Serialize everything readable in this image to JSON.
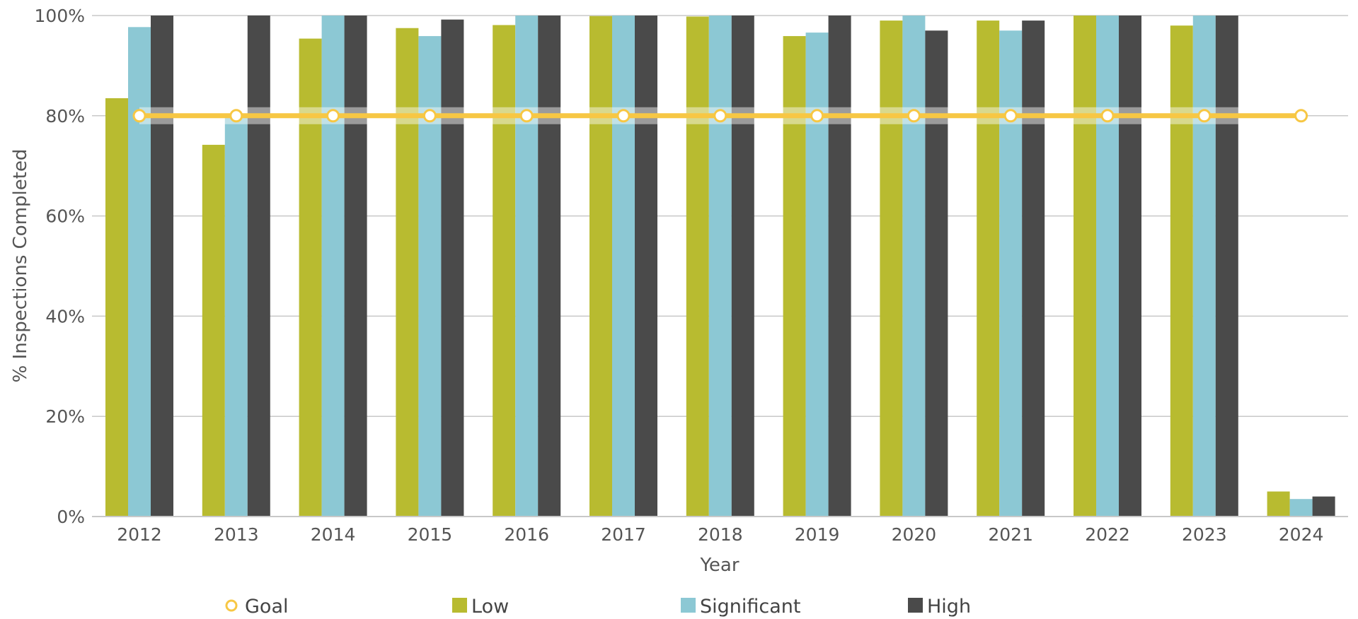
{
  "chart_data": {
    "type": "bar",
    "xlabel": "Year",
    "ylabel": "% Inspections Completed",
    "ylim": [
      0,
      100
    ],
    "yticks": [
      0,
      20,
      40,
      60,
      80,
      100
    ],
    "ytick_labels": [
      "0%",
      "20%",
      "40%",
      "60%",
      "80%",
      "100%"
    ],
    "grid": true,
    "legend_position": "bottom",
    "categories": [
      "2012",
      "2013",
      "2014",
      "2015",
      "2016",
      "2017",
      "2018",
      "2019",
      "2020",
      "2021",
      "2022",
      "2023",
      "2024"
    ],
    "series": [
      {
        "name": "Low",
        "type": "bar",
        "color": "#b8bb30",
        "values": [
          83.5,
          74.2,
          95.4,
          97.5,
          98.1,
          99.9,
          99.8,
          95.9,
          99.0,
          99.0,
          100,
          98.0,
          5.0
        ]
      },
      {
        "name": "Significant",
        "type": "bar",
        "color": "#8cc8d4",
        "values": [
          97.7,
          80.0,
          100,
          95.9,
          100,
          100,
          100,
          96.6,
          100,
          97.0,
          100,
          100,
          3.5
        ]
      },
      {
        "name": "High",
        "type": "bar",
        "color": "#4a4a4a",
        "values": [
          100,
          100,
          100,
          99.2,
          100,
          100,
          100,
          100,
          97.0,
          99.0,
          100,
          100,
          4.0
        ]
      },
      {
        "name": "Goal",
        "type": "line",
        "color": "#f7c744",
        "values": [
          80,
          80,
          80,
          80,
          80,
          80,
          80,
          80,
          80,
          80,
          80,
          80,
          80
        ]
      }
    ],
    "legend_order": [
      "Goal",
      "Low",
      "Significant",
      "High"
    ]
  }
}
